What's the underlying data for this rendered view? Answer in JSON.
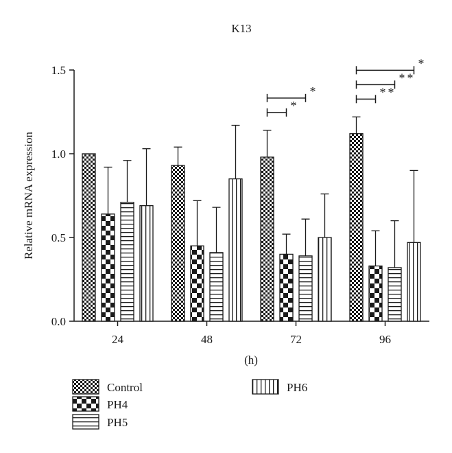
{
  "chart_data": {
    "type": "bar",
    "title": "K13",
    "xlabel": "(h)",
    "ylabel": "Relative mRNA expression",
    "ylim": [
      0,
      1.5
    ],
    "yticks": [
      "0.0",
      "0.5",
      "1.0",
      "1.5"
    ],
    "categories": [
      "24",
      "48",
      "72",
      "96"
    ],
    "grid": false,
    "legend_position": "bottom-left",
    "series": [
      {
        "name": "Control",
        "pattern": "checker-small",
        "values": [
          1.0,
          0.93,
          0.98,
          1.12
        ],
        "errors": [
          0.0,
          0.11,
          0.16,
          0.1
        ]
      },
      {
        "name": "PH4",
        "pattern": "checker-large",
        "values": [
          0.64,
          0.45,
          0.4,
          0.33
        ],
        "errors": [
          0.28,
          0.27,
          0.12,
          0.21
        ]
      },
      {
        "name": "PH5",
        "pattern": "horizontal-lines",
        "values": [
          0.71,
          0.41,
          0.39,
          0.32
        ],
        "errors": [
          0.25,
          0.27,
          0.22,
          0.28
        ]
      },
      {
        "name": "PH6",
        "pattern": "vertical-lines",
        "values": [
          0.69,
          0.85,
          0.5,
          0.47
        ],
        "errors": [
          0.34,
          0.32,
          0.26,
          0.43
        ]
      }
    ],
    "significance": [
      {
        "category": "72",
        "from": "Control",
        "to": "PH4",
        "label": "*"
      },
      {
        "category": "72",
        "from": "Control",
        "to": "PH5",
        "label": "*"
      },
      {
        "category": "96",
        "from": "Control",
        "to": "PH4",
        "label": "**"
      },
      {
        "category": "96",
        "from": "Control",
        "to": "PH5",
        "label": "**"
      },
      {
        "category": "96",
        "from": "Control",
        "to": "PH6",
        "label": "*"
      }
    ]
  }
}
